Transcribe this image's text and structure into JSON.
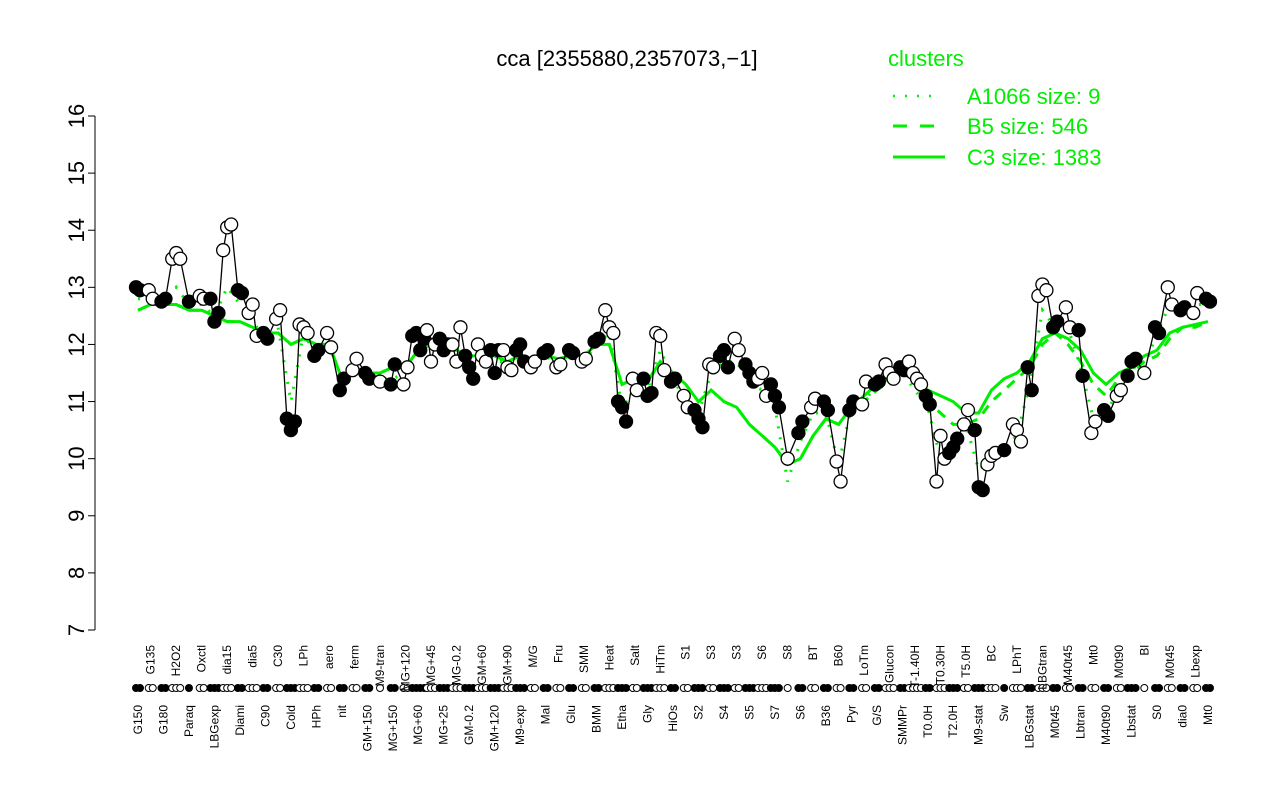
{
  "chart_data": {
    "type": "line",
    "title": "cca [2355880,2357073,−1]",
    "xlabel": "",
    "ylabel": "",
    "ylim": [
      7,
      16
    ],
    "yticks": [
      "7",
      "8",
      "9",
      "10",
      "11",
      "12",
      "13",
      "14",
      "15",
      "16"
    ],
    "grid": false,
    "legend": {
      "title": "clusters",
      "placement": "top-right",
      "color": "#00ee00",
      "entries": [
        {
          "label": "A1066 size: 9",
          "style": "dotted"
        },
        {
          "label": "B5 size: 546",
          "style": "dashed"
        },
        {
          "label": "C3 size: 1383",
          "style": "solid"
        }
      ]
    },
    "groups": [
      {
        "label": "G150",
        "values": [
          13.0,
          12.95
        ]
      },
      {
        "label": "G135",
        "values": [
          12.95,
          12.8
        ]
      },
      {
        "label": "G180",
        "values": [
          12.75,
          12.8
        ]
      },
      {
        "label": "H2O2",
        "values": [
          13.5,
          13.6,
          13.5
        ]
      },
      {
        "label": "Paraq",
        "values": [
          12.75
        ]
      },
      {
        "label": "Oxctl",
        "values": [
          12.85,
          12.8
        ]
      },
      {
        "label": "LBGexp",
        "values": [
          12.8,
          12.4,
          12.55
        ]
      },
      {
        "label": "dia15",
        "values": [
          13.65,
          14.05,
          14.1
        ]
      },
      {
        "label": "Diami",
        "values": [
          12.95,
          12.9
        ]
      },
      {
        "label": "dia5",
        "values": [
          12.55,
          12.7,
          12.15
        ]
      },
      {
        "label": "C90",
        "values": [
          12.2,
          12.1
        ]
      },
      {
        "label": "C30",
        "values": [
          12.45,
          12.6
        ]
      },
      {
        "label": "Cold",
        "values": [
          10.7,
          10.5,
          10.65
        ]
      },
      {
        "label": "LPh",
        "values": [
          12.35,
          12.3,
          12.2
        ]
      },
      {
        "label": "HPh",
        "values": [
          11.8,
          11.9
        ]
      },
      {
        "label": "aero",
        "values": [
          12.2,
          11.95
        ]
      },
      {
        "label": "nit",
        "values": [
          11.2,
          11.4
        ]
      },
      {
        "label": "ferm",
        "values": [
          11.55,
          11.75
        ]
      },
      {
        "label": "GM+150",
        "values": [
          11.5,
          11.4
        ]
      },
      {
        "label": "M9-tran",
        "values": [
          11.35
        ]
      },
      {
        "label": "MG+150",
        "values": [
          11.3,
          11.65
        ]
      },
      {
        "label": "MG+120",
        "values": [
          11.3,
          11.6
        ]
      },
      {
        "label": "MG+60",
        "values": [
          12.15,
          12.2,
          11.9,
          12.1
        ]
      },
      {
        "label": "MG+45",
        "values": [
          12.25,
          11.7,
          12.0
        ]
      },
      {
        "label": "MG+25",
        "values": [
          12.1,
          11.9,
          12.0
        ]
      },
      {
        "label": "MG-0.2",
        "values": [
          12.0,
          11.7,
          12.3
        ]
      },
      {
        "label": "GM-0.2",
        "values": [
          11.8,
          11.6,
          11.4
        ]
      },
      {
        "label": "GM+60",
        "values": [
          12.0,
          11.8,
          11.7
        ]
      },
      {
        "label": "GM+120",
        "values": [
          11.9,
          11.5,
          11.9
        ]
      },
      {
        "label": "GM+90",
        "values": [
          11.9,
          11.6,
          11.55
        ]
      },
      {
        "label": "M9-exp",
        "values": [
          11.9,
          12.0,
          11.7
        ]
      },
      {
        "label": "M/G",
        "values": [
          11.6,
          11.7
        ]
      },
      {
        "label": "Mal",
        "values": [
          11.85,
          11.9
        ]
      },
      {
        "label": "Fru",
        "values": [
          11.6,
          11.65
        ]
      },
      {
        "label": "Glu",
        "values": [
          11.9,
          11.85
        ]
      },
      {
        "label": "SMM",
        "values": [
          11.7,
          11.75
        ]
      },
      {
        "label": "BMM",
        "values": [
          12.05,
          12.1
        ]
      },
      {
        "label": "Heat",
        "values": [
          12.6,
          12.3,
          12.2
        ]
      },
      {
        "label": "Etha",
        "values": [
          11.0,
          10.9,
          10.65
        ]
      },
      {
        "label": "Salt",
        "values": [
          11.4,
          11.2
        ]
      },
      {
        "label": "Gly",
        "values": [
          11.4,
          11.1,
          11.15
        ]
      },
      {
        "label": "HiTm",
        "values": [
          12.2,
          12.15,
          11.55
        ]
      },
      {
        "label": "HiOs",
        "values": [
          11.35,
          11.4
        ]
      },
      {
        "label": "S1",
        "values": [
          11.1,
          10.9
        ]
      },
      {
        "label": "S2",
        "values": [
          10.85,
          10.7,
          10.55
        ]
      },
      {
        "label": "S3",
        "values": [
          11.65,
          11.6
        ]
      },
      {
        "label": "S4",
        "values": [
          11.8,
          11.9,
          11.6
        ]
      },
      {
        "label": "S3",
        "values": [
          12.1,
          11.9
        ]
      },
      {
        "label": "S5",
        "values": [
          11.65,
          11.5,
          11.35
        ]
      },
      {
        "label": "S6",
        "values": [
          11.4,
          11.5,
          11.1
        ]
      },
      {
        "label": "S7",
        "values": [
          11.3,
          11.1,
          10.9
        ]
      },
      {
        "label": "S8",
        "values": [
          10.0
        ]
      },
      {
        "label": "S6",
        "values": [
          10.45,
          10.65
        ]
      },
      {
        "label": "BT",
        "values": [
          10.9,
          11.05
        ]
      },
      {
        "label": "B36",
        "values": [
          11.0,
          10.85
        ]
      },
      {
        "label": "B60",
        "values": [
          9.95,
          9.6
        ]
      },
      {
        "label": "Pyr",
        "values": [
          10.85,
          11.0
        ]
      },
      {
        "label": "LoTm",
        "values": [
          10.95,
          11.35
        ]
      },
      {
        "label": "G/S",
        "values": [
          11.3,
          11.35
        ]
      },
      {
        "label": "Glucon",
        "values": [
          11.65,
          11.5,
          11.4
        ]
      },
      {
        "label": "SMMPr",
        "values": [
          11.6,
          11.55
        ]
      },
      {
        "label": "T-1.40H",
        "values": [
          11.7,
          11.5,
          11.4,
          11.3
        ]
      },
      {
        "label": "T0.0H",
        "values": [
          11.1,
          10.95
        ]
      },
      {
        "label": "T0.30H",
        "values": [
          9.6,
          10.4,
          10.0
        ]
      },
      {
        "label": "T2.0H",
        "values": [
          10.1,
          10.2,
          10.35
        ]
      },
      {
        "label": "T5.0H",
        "values": [
          10.6,
          10.85
        ]
      },
      {
        "label": "M9-stat",
        "values": [
          10.5,
          9.5,
          9.45
        ]
      },
      {
        "label": "BC",
        "values": [
          9.9,
          10.05,
          10.1
        ]
      },
      {
        "label": "Sw",
        "values": [
          10.15
        ]
      },
      {
        "label": "LPhT",
        "values": [
          10.6,
          10.5,
          10.3
        ]
      },
      {
        "label": "LBGstat",
        "values": [
          11.6,
          11.2
        ]
      },
      {
        "label": "LBGtran",
        "values": [
          12.85,
          13.05,
          12.95
        ]
      },
      {
        "label": "M0t45",
        "values": [
          12.3,
          12.4
        ]
      },
      {
        "label": "M40t45",
        "values": [
          12.65,
          12.3
        ]
      },
      {
        "label": "Lbtran",
        "values": [
          12.25,
          11.45
        ]
      },
      {
        "label": "Mt0",
        "values": [
          10.45,
          10.65
        ]
      },
      {
        "label": "M40t90",
        "values": [
          10.85,
          10.75
        ]
      },
      {
        "label": "M0t90",
        "values": [
          11.1,
          11.2
        ]
      },
      {
        "label": "Lbstat",
        "values": [
          11.45,
          11.7,
          11.75
        ]
      },
      {
        "label": "Bl",
        "values": [
          11.5
        ]
      },
      {
        "label": "S0",
        "values": [
          12.3,
          12.2
        ]
      },
      {
        "label": "M0t45",
        "values": [
          13.0,
          12.7
        ]
      },
      {
        "label": "dia0",
        "values": [
          12.6,
          12.65
        ]
      },
      {
        "label": "Lbexp",
        "values": [
          12.55,
          12.9
        ]
      },
      {
        "label": "Mt0",
        "values": [
          12.8,
          12.75
        ]
      }
    ],
    "series": [
      {
        "name": "C3 size: 1383",
        "style": "solid",
        "values": [
          12.6,
          12.7,
          12.7,
          12.7,
          12.6,
          12.6,
          12.5,
          12.4,
          12.4,
          12.3,
          12.2,
          12.2,
          12.0,
          12.1,
          12.0,
          12.0,
          11.4,
          11.6,
          11.5,
          11.5,
          11.6,
          11.6,
          11.9,
          12.0,
          11.9,
          11.9,
          11.8,
          11.8,
          11.8,
          11.7,
          11.8,
          11.7,
          11.8,
          11.75,
          11.8,
          11.8,
          12.0,
          12.0,
          11.3,
          11.4,
          11.35,
          11.7,
          11.5,
          11.3,
          11.0,
          11.2,
          11.0,
          10.9,
          10.6,
          10.4,
          10.2,
          9.9,
          10.0,
          10.4,
          10.7,
          10.6,
          10.9,
          11.1,
          11.3,
          11.4,
          11.6,
          11.4,
          11.2,
          11.1,
          11.0,
          10.8,
          10.8,
          11.2,
          11.4,
          11.5,
          11.7,
          12.1,
          12.2,
          12.1,
          11.9,
          11.5,
          11.3,
          11.5,
          11.6,
          11.8,
          11.9,
          12.2,
          12.3,
          12.35,
          12.4
        ]
      },
      {
        "name": "B5 size: 546",
        "style": "dashed",
        "values": [
          12.6,
          12.7,
          12.7,
          12.7,
          12.6,
          12.6,
          12.5,
          12.4,
          12.4,
          12.3,
          12.2,
          12.2,
          12.0,
          12.1,
          12.0,
          12.0,
          11.4,
          11.6,
          11.5,
          11.5,
          11.6,
          11.6,
          11.9,
          12.0,
          11.9,
          11.9,
          11.8,
          11.8,
          11.8,
          11.7,
          11.8,
          11.7,
          11.8,
          11.75,
          11.8,
          11.8,
          12.0,
          12.0,
          11.3,
          11.4,
          11.35,
          11.7,
          11.5,
          11.3,
          11.0,
          11.2,
          11.0,
          10.9,
          10.6,
          10.4,
          10.2,
          9.9,
          10.0,
          10.4,
          10.7,
          10.6,
          10.9,
          11.0,
          11.2,
          11.35,
          11.55,
          11.3,
          11.0,
          10.8,
          10.6,
          10.6,
          10.7,
          11.0,
          11.2,
          11.4,
          11.6,
          12.0,
          12.2,
          12.0,
          11.7,
          11.3,
          11.1,
          11.4,
          11.5,
          11.7,
          11.8,
          12.1,
          12.3,
          12.3,
          12.4
        ]
      },
      {
        "name": "A1066 size: 9",
        "style": "dotted",
        "values": [
          12.8,
          12.8,
          12.75,
          13.0,
          12.7,
          12.7,
          12.5,
          13.0,
          12.7,
          12.4,
          12.1,
          12.3,
          11.0,
          12.2,
          11.8,
          12.0,
          11.3,
          11.6,
          11.4,
          11.4,
          11.4,
          11.5,
          12.0,
          12.0,
          11.9,
          11.9,
          11.7,
          11.8,
          11.7,
          11.7,
          11.8,
          11.65,
          11.8,
          11.65,
          11.85,
          11.7,
          12.0,
          12.2,
          10.9,
          11.2,
          11.2,
          11.9,
          11.4,
          11.0,
          10.8,
          11.5,
          11.7,
          11.7,
          11.3,
          11.2,
          10.9,
          9.6,
          10.3,
          10.8,
          10.8,
          9.9,
          10.9,
          11.0,
          11.3,
          11.4,
          11.5,
          11.2,
          10.9,
          10.0,
          10.2,
          10.6,
          9.8,
          10.0,
          10.2,
          10.4,
          11.3,
          12.6,
          12.3,
          12.3,
          11.6,
          10.7,
          10.8,
          11.2,
          11.6,
          11.6,
          12.2,
          12.7,
          12.6,
          12.7,
          12.7
        ]
      }
    ]
  }
}
